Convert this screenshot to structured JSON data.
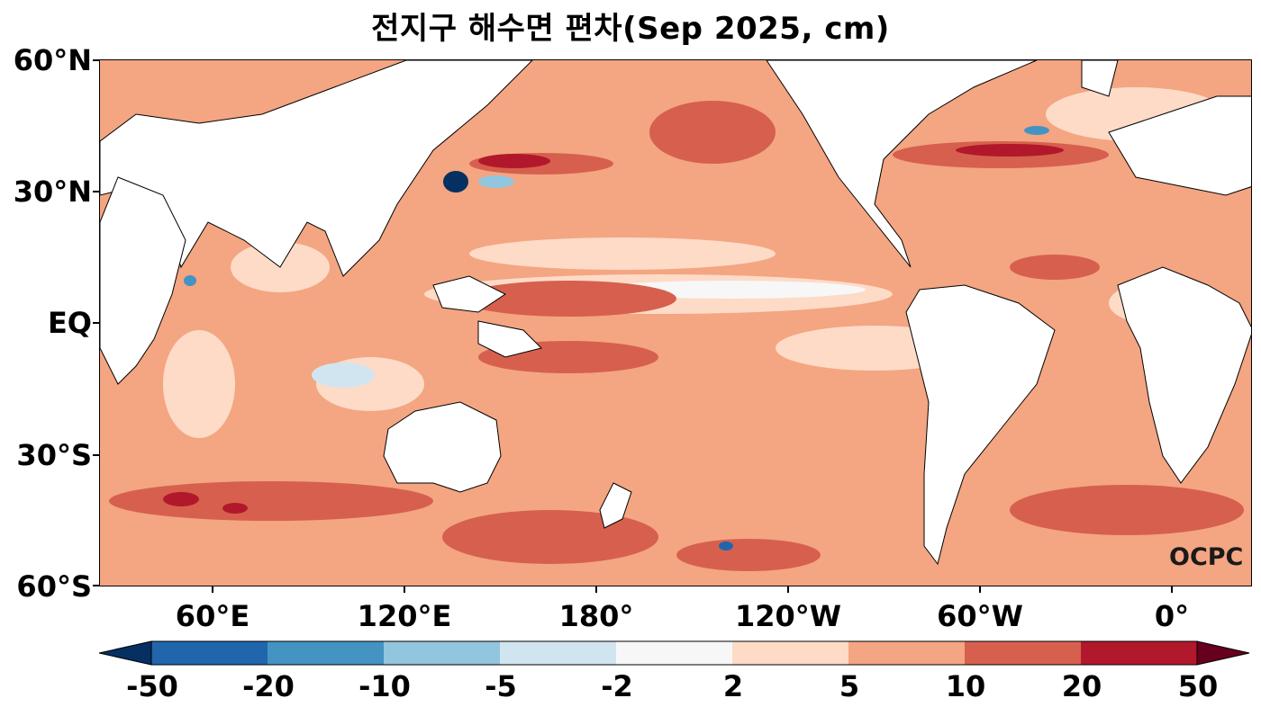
{
  "title": "전지구 해수면 편차(Sep 2025, cm)",
  "watermark": "OCPC",
  "map": {
    "y_axis_labels": [
      "60°N",
      "30°N",
      "EQ",
      "30°S",
      "60°S"
    ],
    "x_axis_labels": [
      "60°E",
      "120°E",
      "180°",
      "120°W",
      "60°W",
      "0°"
    ]
  },
  "colorbar": {
    "labels": [
      "-50",
      "-20",
      "-10",
      "-5",
      "-2",
      "2",
      "5",
      "10",
      "20",
      "50"
    ],
    "colors": [
      "#053061",
      "#2166ac",
      "#4393c3",
      "#92c5de",
      "#d1e5f0",
      "#f7f7f7",
      "#fddbc7",
      "#f4a582",
      "#d6604d",
      "#b2182b",
      "#67001f"
    ]
  }
}
